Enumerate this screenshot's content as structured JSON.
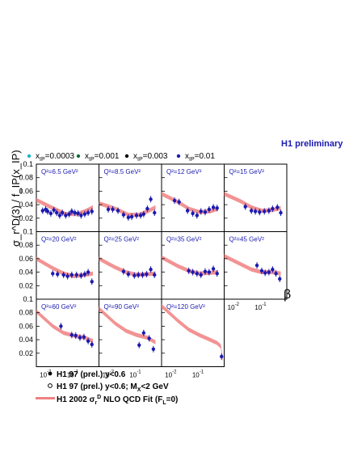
{
  "chart_data": {
    "type": "scatter",
    "title": "H1 preliminary",
    "ylabel": "σ_r^D(3) / f_IP(x_IP)",
    "xlabel": "β",
    "x_scale": "log",
    "xlim": [
      0.005,
      1.0
    ],
    "ylim": [
      0,
      0.1
    ],
    "ytick_labels": [
      "0.1",
      "0.08",
      "0.06",
      "0.04",
      "0.02"
    ],
    "xtick_labels": [
      "10",
      "-2",
      "10",
      "-1"
    ],
    "xpom_legend": [
      {
        "label": "x",
        "sub": "IP",
        "value": "=0.0003",
        "color": "#19b8c8"
      },
      {
        "label": "x",
        "sub": "IP",
        "value": "=0.001",
        "color": "#0d6e3a"
      },
      {
        "label": "x",
        "sub": "IP",
        "value": "=0.003",
        "color": "#000000"
      },
      {
        "label": "x",
        "sub": "IP",
        "value": "=0.01",
        "color": "#1a1ab0"
      }
    ],
    "panels": [
      {
        "q2": "Q²=6.5 GeV²",
        "points": [
          [
            0.0085,
            0.031
          ],
          [
            0.011,
            0.033
          ],
          [
            0.013,
            0.03
          ],
          [
            0.017,
            0.027
          ],
          [
            0.022,
            0.032
          ],
          [
            0.028,
            0.028
          ],
          [
            0.036,
            0.024
          ],
          [
            0.045,
            0.028
          ],
          [
            0.06,
            0.024
          ],
          [
            0.08,
            0.026
          ],
          [
            0.1,
            0.03
          ],
          [
            0.13,
            0.028
          ],
          [
            0.17,
            0.027
          ],
          [
            0.22,
            0.024
          ],
          [
            0.3,
            0.026
          ],
          [
            0.4,
            0.028
          ],
          [
            0.55,
            0.03
          ]
        ],
        "band": [
          [
            0.005,
            0.047
          ],
          [
            0.02,
            0.035
          ],
          [
            0.06,
            0.026
          ],
          [
            0.15,
            0.026
          ],
          [
            0.3,
            0.03
          ],
          [
            0.6,
            0.036
          ]
        ]
      },
      {
        "q2": "Q²=8.5 GeV²",
        "points": [
          [
            0.011,
            0.033
          ],
          [
            0.016,
            0.033
          ],
          [
            0.025,
            0.031
          ],
          [
            0.04,
            0.025
          ],
          [
            0.06,
            0.021
          ],
          [
            0.08,
            0.022
          ],
          [
            0.12,
            0.024
          ],
          [
            0.17,
            0.024
          ],
          [
            0.22,
            0.026
          ],
          [
            0.3,
            0.034
          ],
          [
            0.4,
            0.048
          ],
          [
            0.55,
            0.028
          ]
        ],
        "band": [
          [
            0.005,
            0.042
          ],
          [
            0.02,
            0.034
          ],
          [
            0.06,
            0.025
          ],
          [
            0.15,
            0.025
          ],
          [
            0.3,
            0.03
          ],
          [
            0.6,
            0.036
          ]
        ]
      },
      {
        "q2": "Q²=12 GeV²",
        "points": [
          [
            0.015,
            0.046
          ],
          [
            0.022,
            0.044
          ],
          [
            0.045,
            0.031
          ],
          [
            0.07,
            0.027
          ],
          [
            0.1,
            0.024
          ],
          [
            0.14,
            0.03
          ],
          [
            0.2,
            0.029
          ],
          [
            0.28,
            0.033
          ],
          [
            0.4,
            0.036
          ],
          [
            0.55,
            0.035
          ]
        ],
        "band": [
          [
            0.005,
            0.056
          ],
          [
            0.02,
            0.044
          ],
          [
            0.05,
            0.034
          ],
          [
            0.12,
            0.029
          ],
          [
            0.3,
            0.03
          ],
          [
            0.6,
            0.034
          ]
        ]
      },
      {
        "q2": "Q²=15 GeV²",
        "points": [
          [
            0.03,
            0.037
          ],
          [
            0.05,
            0.031
          ],
          [
            0.07,
            0.03
          ],
          [
            0.1,
            0.029
          ],
          [
            0.15,
            0.03
          ],
          [
            0.22,
            0.031
          ],
          [
            0.3,
            0.034
          ],
          [
            0.45,
            0.036
          ],
          [
            0.6,
            0.028
          ]
        ],
        "band": [
          [
            0.005,
            0.056
          ],
          [
            0.02,
            0.045
          ],
          [
            0.05,
            0.036
          ],
          [
            0.12,
            0.031
          ],
          [
            0.3,
            0.032
          ],
          [
            0.6,
            0.035
          ]
        ]
      },
      {
        "q2": "Q²=20 GeV²",
        "points": [
          [
            0.02,
            0.038
          ],
          [
            0.03,
            0.037
          ],
          [
            0.05,
            0.036
          ],
          [
            0.07,
            0.034
          ],
          [
            0.1,
            0.036
          ],
          [
            0.15,
            0.036
          ],
          [
            0.22,
            0.035
          ],
          [
            0.3,
            0.037
          ],
          [
            0.4,
            0.04
          ],
          [
            0.55,
            0.026
          ]
        ],
        "band": [
          [
            0.005,
            0.06
          ],
          [
            0.02,
            0.046
          ],
          [
            0.05,
            0.038
          ],
          [
            0.12,
            0.034
          ],
          [
            0.3,
            0.036
          ],
          [
            0.6,
            0.038
          ]
        ]
      },
      {
        "q2": "Q²=25 GeV²",
        "points": [
          [
            0.04,
            0.041
          ],
          [
            0.06,
            0.037
          ],
          [
            0.1,
            0.035
          ],
          [
            0.14,
            0.036
          ],
          [
            0.2,
            0.036
          ],
          [
            0.28,
            0.037
          ],
          [
            0.4,
            0.044
          ],
          [
            0.55,
            0.036
          ]
        ],
        "band": [
          [
            0.005,
            0.06
          ],
          [
            0.02,
            0.047
          ],
          [
            0.05,
            0.04
          ],
          [
            0.12,
            0.036
          ],
          [
            0.3,
            0.037
          ],
          [
            0.6,
            0.038
          ]
        ]
      },
      {
        "q2": "Q²=35 GeV²",
        "points": [
          [
            0.05,
            0.042
          ],
          [
            0.07,
            0.04
          ],
          [
            0.1,
            0.038
          ],
          [
            0.14,
            0.036
          ],
          [
            0.2,
            0.041
          ],
          [
            0.28,
            0.04
          ],
          [
            0.4,
            0.045
          ],
          [
            0.55,
            0.038
          ]
        ],
        "band": [
          [
            0.005,
            0.062
          ],
          [
            0.02,
            0.049
          ],
          [
            0.05,
            0.042
          ],
          [
            0.12,
            0.038
          ],
          [
            0.3,
            0.039
          ],
          [
            0.6,
            0.04
          ]
        ]
      },
      {
        "q2": "Q²=45 GeV²",
        "points": [
          [
            0.08,
            0.05
          ],
          [
            0.12,
            0.042
          ],
          [
            0.16,
            0.039
          ],
          [
            0.22,
            0.04
          ],
          [
            0.3,
            0.044
          ],
          [
            0.4,
            0.038
          ],
          [
            0.55,
            0.03
          ]
        ],
        "band": [
          [
            0.005,
            0.064
          ],
          [
            0.02,
            0.052
          ],
          [
            0.05,
            0.044
          ],
          [
            0.12,
            0.04
          ],
          [
            0.3,
            0.04
          ],
          [
            0.6,
            0.038
          ]
        ]
      },
      {
        "q2": "Q²=60 GeV²",
        "points": [
          [
            0.04,
            0.06
          ],
          [
            0.1,
            0.047
          ],
          [
            0.14,
            0.046
          ],
          [
            0.2,
            0.043
          ],
          [
            0.28,
            0.044
          ],
          [
            0.4,
            0.038
          ],
          [
            0.55,
            0.033
          ]
        ],
        "band": [
          [
            0.005,
            0.082
          ],
          [
            0.02,
            0.06
          ],
          [
            0.05,
            0.05
          ],
          [
            0.12,
            0.046
          ],
          [
            0.3,
            0.043
          ],
          [
            0.6,
            0.038
          ]
        ]
      },
      {
        "q2": "Q²=90 GeV²",
        "points": [
          [
            0.15,
            0.032
          ],
          [
            0.22,
            0.05
          ],
          [
            0.35,
            0.042
          ],
          [
            0.5,
            0.026
          ]
        ],
        "band": [
          [
            0.005,
            0.086
          ],
          [
            0.02,
            0.064
          ],
          [
            0.05,
            0.053
          ],
          [
            0.12,
            0.047
          ],
          [
            0.3,
            0.043
          ],
          [
            0.6,
            0.036
          ]
        ]
      },
      {
        "q2": "Q²=120 GeV²",
        "points": [
          [
            0.8,
            0.015
          ]
        ],
        "band": [
          [
            0.005,
            0.09
          ],
          [
            0.02,
            0.068
          ],
          [
            0.05,
            0.055
          ],
          [
            0.12,
            0.047
          ],
          [
            0.3,
            0.04
          ],
          [
            0.55,
            0.035
          ],
          [
            0.75,
            0.03
          ],
          [
            0.9,
            0.01
          ]
        ]
      }
    ],
    "bottom_legend": [
      {
        "marker": "filled",
        "text": "H1 97 (prel.) y<0.6"
      },
      {
        "marker": "open",
        "text": "H1 97 (prel.) y<0.6; M",
        "sub": "X",
        "tail": "<2 GeV"
      },
      {
        "marker": "band",
        "text": "H1 2002 σ",
        "sub": "r",
        "sup": "D",
        "tail": " NLO QCD Fit (F",
        "sub2": "L",
        "tail2": "=0)"
      }
    ],
    "colors": {
      "band": "#f08080",
      "title": "#1a1ab0",
      "label": "#1a1ab0"
    }
  }
}
